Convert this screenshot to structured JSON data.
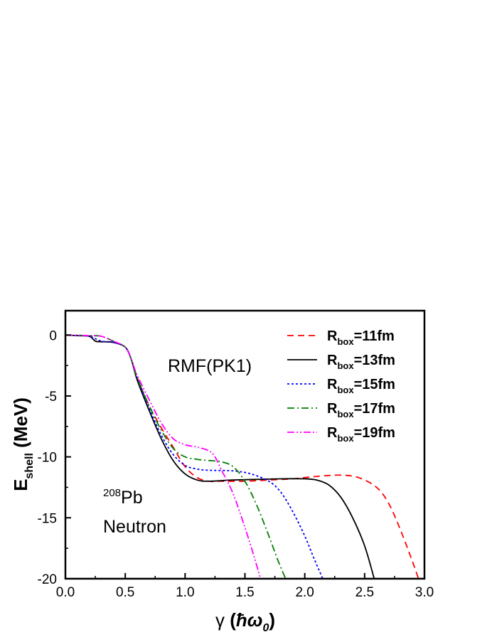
{
  "chart_data": {
    "type": "line",
    "xlabel": {
      "symbol": "γ",
      "open": " (",
      "unit_hbar": "ħω",
      "unit_sub": "0",
      "close": ")"
    },
    "ylabel": {
      "main": "E",
      "sub": "shell",
      "unit": " (MeV)"
    },
    "xlim": [
      0.0,
      3.0
    ],
    "ylim": [
      -20,
      2
    ],
    "xticks": [
      "0.0",
      "0.5",
      "1.0",
      "1.5",
      "2.0",
      "2.5",
      "3.0"
    ],
    "yticks": [
      "0",
      "-5",
      "-10",
      "-15",
      "-20"
    ],
    "annotations": {
      "model": "RMF(PK1)",
      "nucleus_mass": "208",
      "nucleus_symbol": "Pb",
      "particle": "Neutron"
    },
    "legend_placement": "top-right",
    "series": [
      {
        "name": "R_box=11fm",
        "legend_main": "R",
        "legend_sub": "box",
        "legend_tail": "=11fm",
        "color": "#ff0000",
        "dash": "9,6",
        "points": [
          [
            0.0,
            0.0
          ],
          [
            0.1,
            -0.05
          ],
          [
            0.2,
            -0.1
          ],
          [
            0.25,
            -0.5
          ],
          [
            0.3,
            -0.55
          ],
          [
            0.4,
            -0.6
          ],
          [
            0.5,
            -1.0
          ],
          [
            0.55,
            -2.0
          ],
          [
            0.6,
            -3.5
          ],
          [
            0.7,
            -5.8
          ],
          [
            0.8,
            -7.6
          ],
          [
            0.9,
            -9.2
          ],
          [
            1.0,
            -10.8
          ],
          [
            1.1,
            -11.7
          ],
          [
            1.2,
            -12.0
          ],
          [
            1.3,
            -12.0
          ],
          [
            1.5,
            -12.0
          ],
          [
            1.7,
            -11.9
          ],
          [
            1.9,
            -11.8
          ],
          [
            2.1,
            -11.6
          ],
          [
            2.3,
            -11.5
          ],
          [
            2.45,
            -11.7
          ],
          [
            2.6,
            -12.5
          ],
          [
            2.7,
            -13.8
          ],
          [
            2.8,
            -16.0
          ],
          [
            2.9,
            -18.6
          ],
          [
            2.95,
            -20.0
          ]
        ]
      },
      {
        "name": "R_box=13fm",
        "legend_main": "R",
        "legend_sub": "box",
        "legend_tail": "=13fm",
        "color": "#000000",
        "dash": "",
        "points": [
          [
            0.0,
            0.0
          ],
          [
            0.1,
            -0.05
          ],
          [
            0.2,
            -0.1
          ],
          [
            0.25,
            -0.5
          ],
          [
            0.3,
            -0.55
          ],
          [
            0.4,
            -0.6
          ],
          [
            0.5,
            -1.0
          ],
          [
            0.55,
            -2.0
          ],
          [
            0.6,
            -3.7
          ],
          [
            0.7,
            -6.2
          ],
          [
            0.8,
            -8.5
          ],
          [
            0.9,
            -10.3
          ],
          [
            1.0,
            -11.4
          ],
          [
            1.1,
            -11.9
          ],
          [
            1.2,
            -12.0
          ],
          [
            1.4,
            -11.9
          ],
          [
            1.6,
            -11.85
          ],
          [
            1.8,
            -11.8
          ],
          [
            2.0,
            -11.8
          ],
          [
            2.1,
            -11.9
          ],
          [
            2.2,
            -12.3
          ],
          [
            2.3,
            -13.3
          ],
          [
            2.4,
            -15.0
          ],
          [
            2.5,
            -17.3
          ],
          [
            2.58,
            -20.0
          ]
        ]
      },
      {
        "name": "R_box=15fm",
        "legend_main": "R",
        "legend_sub": "box",
        "legend_tail": "=15fm",
        "color": "#0000ff",
        "dash": "3,3",
        "points": [
          [
            0.0,
            0.0
          ],
          [
            0.1,
            -0.05
          ],
          [
            0.2,
            -0.1
          ],
          [
            0.3,
            -0.5
          ],
          [
            0.4,
            -0.6
          ],
          [
            0.5,
            -1.0
          ],
          [
            0.55,
            -2.0
          ],
          [
            0.6,
            -3.5
          ],
          [
            0.7,
            -6.0
          ],
          [
            0.8,
            -8.2
          ],
          [
            0.9,
            -9.8
          ],
          [
            1.0,
            -10.7
          ],
          [
            1.1,
            -11.0
          ],
          [
            1.2,
            -11.1
          ],
          [
            1.4,
            -11.15
          ],
          [
            1.55,
            -11.4
          ],
          [
            1.7,
            -12.0
          ],
          [
            1.8,
            -12.9
          ],
          [
            1.9,
            -14.5
          ],
          [
            2.0,
            -16.5
          ],
          [
            2.08,
            -18.4
          ],
          [
            2.15,
            -20.0
          ]
        ]
      },
      {
        "name": "R_box=17fm",
        "legend_main": "R",
        "legend_sub": "box",
        "legend_tail": "=17fm",
        "color": "#008000",
        "dash": "10,4,2,4",
        "points": [
          [
            0.0,
            0.0
          ],
          [
            0.1,
            -0.02
          ],
          [
            0.2,
            -0.05
          ],
          [
            0.3,
            -0.1
          ],
          [
            0.4,
            -0.5
          ],
          [
            0.5,
            -1.0
          ],
          [
            0.55,
            -2.0
          ],
          [
            0.6,
            -3.5
          ],
          [
            0.7,
            -5.8
          ],
          [
            0.8,
            -7.8
          ],
          [
            0.9,
            -9.3
          ],
          [
            1.0,
            -10.0
          ],
          [
            1.1,
            -10.2
          ],
          [
            1.2,
            -10.3
          ],
          [
            1.3,
            -10.4
          ],
          [
            1.4,
            -10.8
          ],
          [
            1.5,
            -12.0
          ],
          [
            1.6,
            -14.0
          ],
          [
            1.7,
            -16.5
          ],
          [
            1.78,
            -18.6
          ],
          [
            1.84,
            -20.0
          ]
        ]
      },
      {
        "name": "R_box=19fm",
        "legend_main": "R",
        "legend_sub": "box",
        "legend_tail": "=19fm",
        "color": "#ff00ff",
        "dash": "10,3,2,3,2,3",
        "points": [
          [
            0.0,
            0.0
          ],
          [
            0.1,
            -0.02
          ],
          [
            0.2,
            -0.05
          ],
          [
            0.3,
            -0.1
          ],
          [
            0.4,
            -0.5
          ],
          [
            0.5,
            -1.0
          ],
          [
            0.55,
            -2.0
          ],
          [
            0.6,
            -3.3
          ],
          [
            0.7,
            -5.3
          ],
          [
            0.8,
            -7.2
          ],
          [
            0.9,
            -8.5
          ],
          [
            1.0,
            -9.0
          ],
          [
            1.1,
            -9.2
          ],
          [
            1.2,
            -9.5
          ],
          [
            1.25,
            -10.0
          ],
          [
            1.3,
            -11.0
          ],
          [
            1.4,
            -13.0
          ],
          [
            1.5,
            -15.8
          ],
          [
            1.58,
            -18.3
          ],
          [
            1.63,
            -20.0
          ]
        ]
      }
    ]
  }
}
